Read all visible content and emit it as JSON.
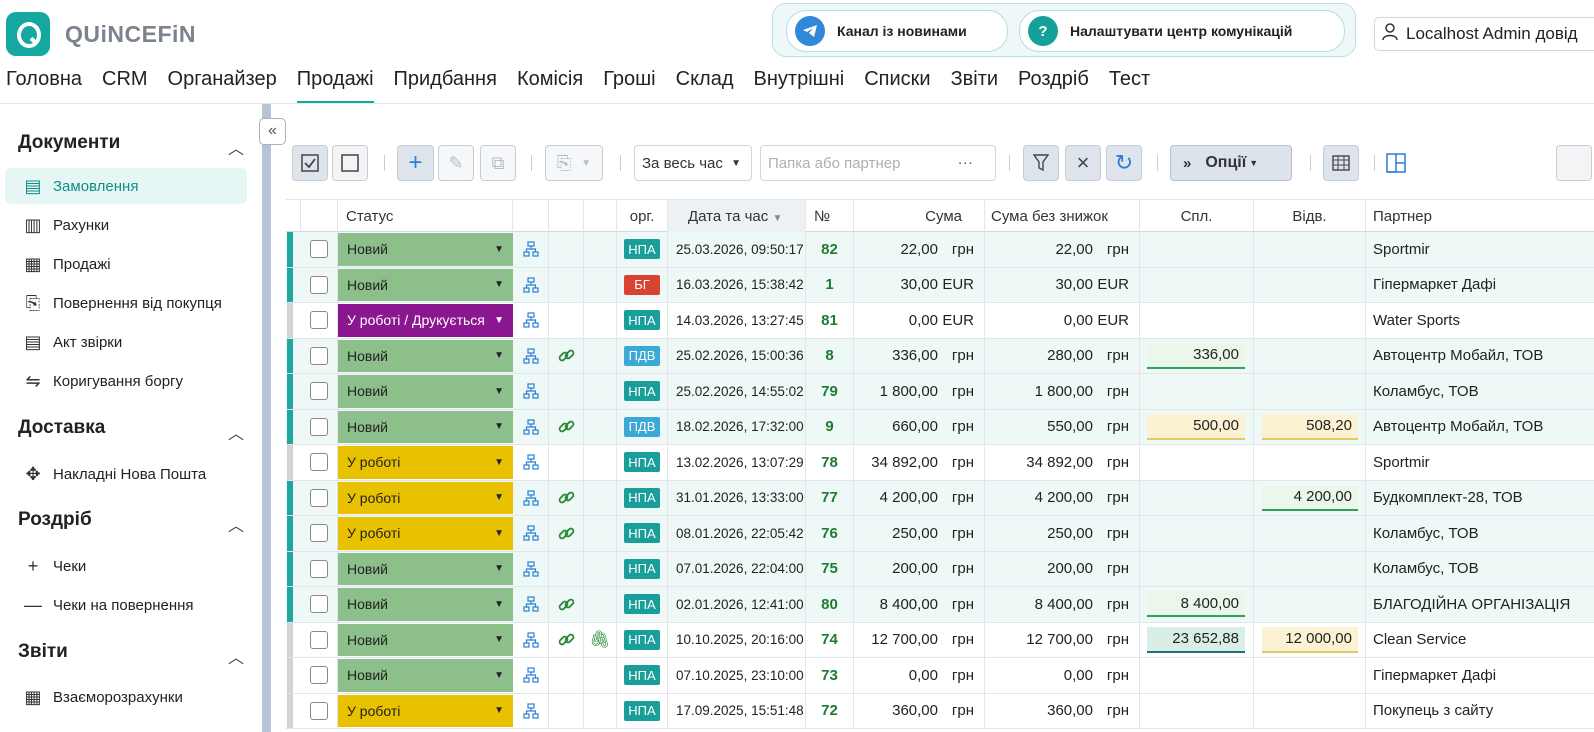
{
  "app": {
    "logo_text": "QUiNCEFiN",
    "brand_color": "#15a8a0"
  },
  "header": {
    "news_channel": "Канал із новинами",
    "comm_center": "Налаштувати центр комунікацій",
    "user": "Localhost Admin довід"
  },
  "nav": [
    "Головна",
    "CRM",
    "Органайзер",
    "Продажі",
    "Придбання",
    "Комісія",
    "Гроші",
    "Склад",
    "Внутрішні",
    "Списки",
    "Звіти",
    "Роздріб",
    "Тест"
  ],
  "nav_active": "Продажі",
  "sidebar": {
    "sections": [
      {
        "title": "Документи",
        "items": [
          {
            "label": "Замовлення",
            "icon": "order-doc-icon",
            "active": true
          },
          {
            "label": "Рахунки",
            "icon": "invoice-icon"
          },
          {
            "label": "Продажі",
            "icon": "sales-chart-icon"
          },
          {
            "label": "Повернення від покупця",
            "icon": "return-doc-icon"
          },
          {
            "label": "Акт звірки",
            "icon": "reconciliation-icon"
          },
          {
            "label": "Коригування боргу",
            "icon": "debt-adjust-icon"
          }
        ]
      },
      {
        "title": "Доставка",
        "items": [
          {
            "label": "Накладні Нова Пошта",
            "icon": "nova-poshta-icon"
          }
        ]
      },
      {
        "title": "Роздріб",
        "items": [
          {
            "label": "Чеки",
            "icon": "plus-icon"
          },
          {
            "label": "Чеки на повернення",
            "icon": "minus-icon"
          }
        ]
      },
      {
        "title": "Звіти",
        "items": [
          {
            "label": "Взаєморозрахунки",
            "icon": "settlements-chart-icon"
          }
        ]
      }
    ]
  },
  "toolbar": {
    "period": "За весь час",
    "search_placeholder": "Папка або партнер",
    "search_dots": "...",
    "options_label": "Опції"
  },
  "table": {
    "columns": {
      "status": "Статус",
      "org": "орг.",
      "date": "Дата та час",
      "num": "№",
      "sum": "Сума",
      "sum_no_disc": "Сума без знижок",
      "paid": "Спл.",
      "shipped": "Відв.",
      "partner": "Партнер"
    },
    "rows": [
      {
        "status": "Новий",
        "status_color": "#8dbf8a",
        "org": "НПА",
        "org_color": "#1a9e9a",
        "link": false,
        "clip": false,
        "date": "25.03.2026, 09:50:17",
        "num": "82",
        "sum": "22,00",
        "cur": "грн",
        "sum2": "22,00",
        "paid": "",
        "paid_style": "",
        "shipped": "",
        "shipped_style": "",
        "partner": "Sportmir",
        "marker": "#1fa79f"
      },
      {
        "status": "Новий",
        "status_color": "#8dbf8a",
        "org": "БГ",
        "org_color": "#d8442f",
        "link": false,
        "clip": false,
        "date": "16.03.2026, 15:38:42",
        "num": "1",
        "sum": "30,00",
        "cur": "EUR",
        "sum2": "30,00",
        "paid": "",
        "paid_style": "",
        "shipped": "",
        "shipped_style": "",
        "partner": "Гіпермаркет Дафі",
        "marker": "#1fa79f"
      },
      {
        "status": "У роботі / Друкується",
        "status_color": "#8a1790",
        "org": "НПА",
        "org_color": "#1a9e9a",
        "link": false,
        "clip": false,
        "date": "14.03.2026, 13:27:45",
        "num": "81",
        "sum": "0,00",
        "cur": "EUR",
        "sum2": "0,00",
        "paid": "",
        "paid_style": "",
        "shipped": "",
        "shipped_style": "",
        "partner": "Water Sports",
        "marker": "#cfd4d8"
      },
      {
        "status": "Новий",
        "status_color": "#8dbf8a",
        "org": "ПДВ",
        "org_color": "#3ba9d6",
        "link": true,
        "clip": false,
        "date": "25.02.2026, 15:00:36",
        "num": "8",
        "sum": "336,00",
        "cur": "грн",
        "sum2": "280,00",
        "paid": "336,00",
        "paid_style": "green",
        "shipped": "",
        "shipped_style": "",
        "partner": "Автоцентр Мобайл, ТОВ",
        "marker": "#1fa79f"
      },
      {
        "status": "Новий",
        "status_color": "#8dbf8a",
        "org": "НПА",
        "org_color": "#1a9e9a",
        "link": false,
        "clip": false,
        "date": "25.02.2026, 14:55:02",
        "num": "79",
        "sum": "1 800,00",
        "cur": "грн",
        "sum2": "1 800,00",
        "paid": "",
        "paid_style": "",
        "shipped": "",
        "shipped_style": "",
        "partner": "Коламбус, ТОВ",
        "marker": "#1fa79f"
      },
      {
        "status": "Новий",
        "status_color": "#8dbf8a",
        "org": "ПДВ",
        "org_color": "#3ba9d6",
        "link": true,
        "clip": false,
        "date": "18.02.2026, 17:32:00",
        "num": "9",
        "sum": "660,00",
        "cur": "грн",
        "sum2": "550,00",
        "paid": "500,00",
        "paid_style": "yellow",
        "shipped": "508,20",
        "shipped_style": "yellow",
        "partner": "Автоцентр Мобайл, ТОВ",
        "marker": "#1fa79f"
      },
      {
        "status": "У роботі",
        "status_color": "#e8c200",
        "org": "НПА",
        "org_color": "#1a9e9a",
        "link": false,
        "clip": false,
        "date": "13.02.2026, 13:07:29",
        "num": "78",
        "sum": "34 892,00",
        "cur": "грн",
        "sum2": "34 892,00",
        "paid": "",
        "paid_style": "",
        "shipped": "",
        "shipped_style": "",
        "partner": "Sportmir",
        "marker": "#cfd4d8"
      },
      {
        "status": "У роботі",
        "status_color": "#e8c200",
        "org": "НПА",
        "org_color": "#1a9e9a",
        "link": true,
        "clip": false,
        "date": "31.01.2026, 13:33:00",
        "num": "77",
        "sum": "4 200,00",
        "cur": "грн",
        "sum2": "4 200,00",
        "paid": "",
        "paid_style": "",
        "shipped": "4 200,00",
        "shipped_style": "green",
        "partner": "Будкомплект-28, ТОВ",
        "marker": "#1fa79f"
      },
      {
        "status": "У роботі",
        "status_color": "#e8c200",
        "org": "НПА",
        "org_color": "#1a9e9a",
        "link": true,
        "clip": false,
        "date": "08.01.2026, 22:05:42",
        "num": "76",
        "sum": "250,00",
        "cur": "грн",
        "sum2": "250,00",
        "paid": "",
        "paid_style": "",
        "shipped": "",
        "shipped_style": "",
        "partner": "Коламбус, ТОВ",
        "marker": "#1fa79f"
      },
      {
        "status": "Новий",
        "status_color": "#8dbf8a",
        "org": "НПА",
        "org_color": "#1a9e9a",
        "link": false,
        "clip": false,
        "date": "07.01.2026, 22:04:00",
        "num": "75",
        "sum": "200,00",
        "cur": "грн",
        "sum2": "200,00",
        "paid": "",
        "paid_style": "",
        "shipped": "",
        "shipped_style": "",
        "partner": "Коламбус, ТОВ",
        "marker": "#1fa79f"
      },
      {
        "status": "Новий",
        "status_color": "#8dbf8a",
        "org": "НПА",
        "org_color": "#1a9e9a",
        "link": true,
        "clip": false,
        "date": "02.01.2026, 12:41:00",
        "num": "80",
        "sum": "8 400,00",
        "cur": "грн",
        "sum2": "8 400,00",
        "paid": "8 400,00",
        "paid_style": "green",
        "shipped": "",
        "shipped_style": "",
        "partner": "БЛАГОДІЙНА ОРГАНІЗАЦІЯ",
        "marker": "#1fa79f"
      },
      {
        "status": "Новий",
        "status_color": "#8dbf8a",
        "org": "НПА",
        "org_color": "#1a9e9a",
        "link": true,
        "clip": true,
        "date": "10.10.2025, 20:16:00",
        "num": "74",
        "sum": "12 700,00",
        "cur": "грн",
        "sum2": "12 700,00",
        "paid": "23 652,88",
        "paid_style": "teal",
        "shipped": "12 000,00",
        "shipped_style": "yellow",
        "partner": "Clean Service",
        "marker": "#cfd4d8"
      },
      {
        "status": "Новий",
        "status_color": "#8dbf8a",
        "org": "НПА",
        "org_color": "#1a9e9a",
        "link": false,
        "clip": false,
        "date": "07.10.2025, 23:10:00",
        "num": "73",
        "sum": "0,00",
        "cur": "грн",
        "sum2": "0,00",
        "paid": "",
        "paid_style": "",
        "shipped": "",
        "shipped_style": "",
        "partner": "Гіпермаркет Дафі",
        "marker": "#cfd4d8"
      },
      {
        "status": "У роботі",
        "status_color": "#e8c200",
        "org": "НПА",
        "org_color": "#1a9e9a",
        "link": false,
        "clip": false,
        "date": "17.09.2025, 15:51:48",
        "num": "72",
        "sum": "360,00",
        "cur": "грн",
        "sum2": "360,00",
        "paid": "",
        "paid_style": "",
        "shipped": "",
        "shipped_style": "",
        "partner": "Покупець з сайту",
        "marker": "#cfd4d8"
      }
    ]
  }
}
